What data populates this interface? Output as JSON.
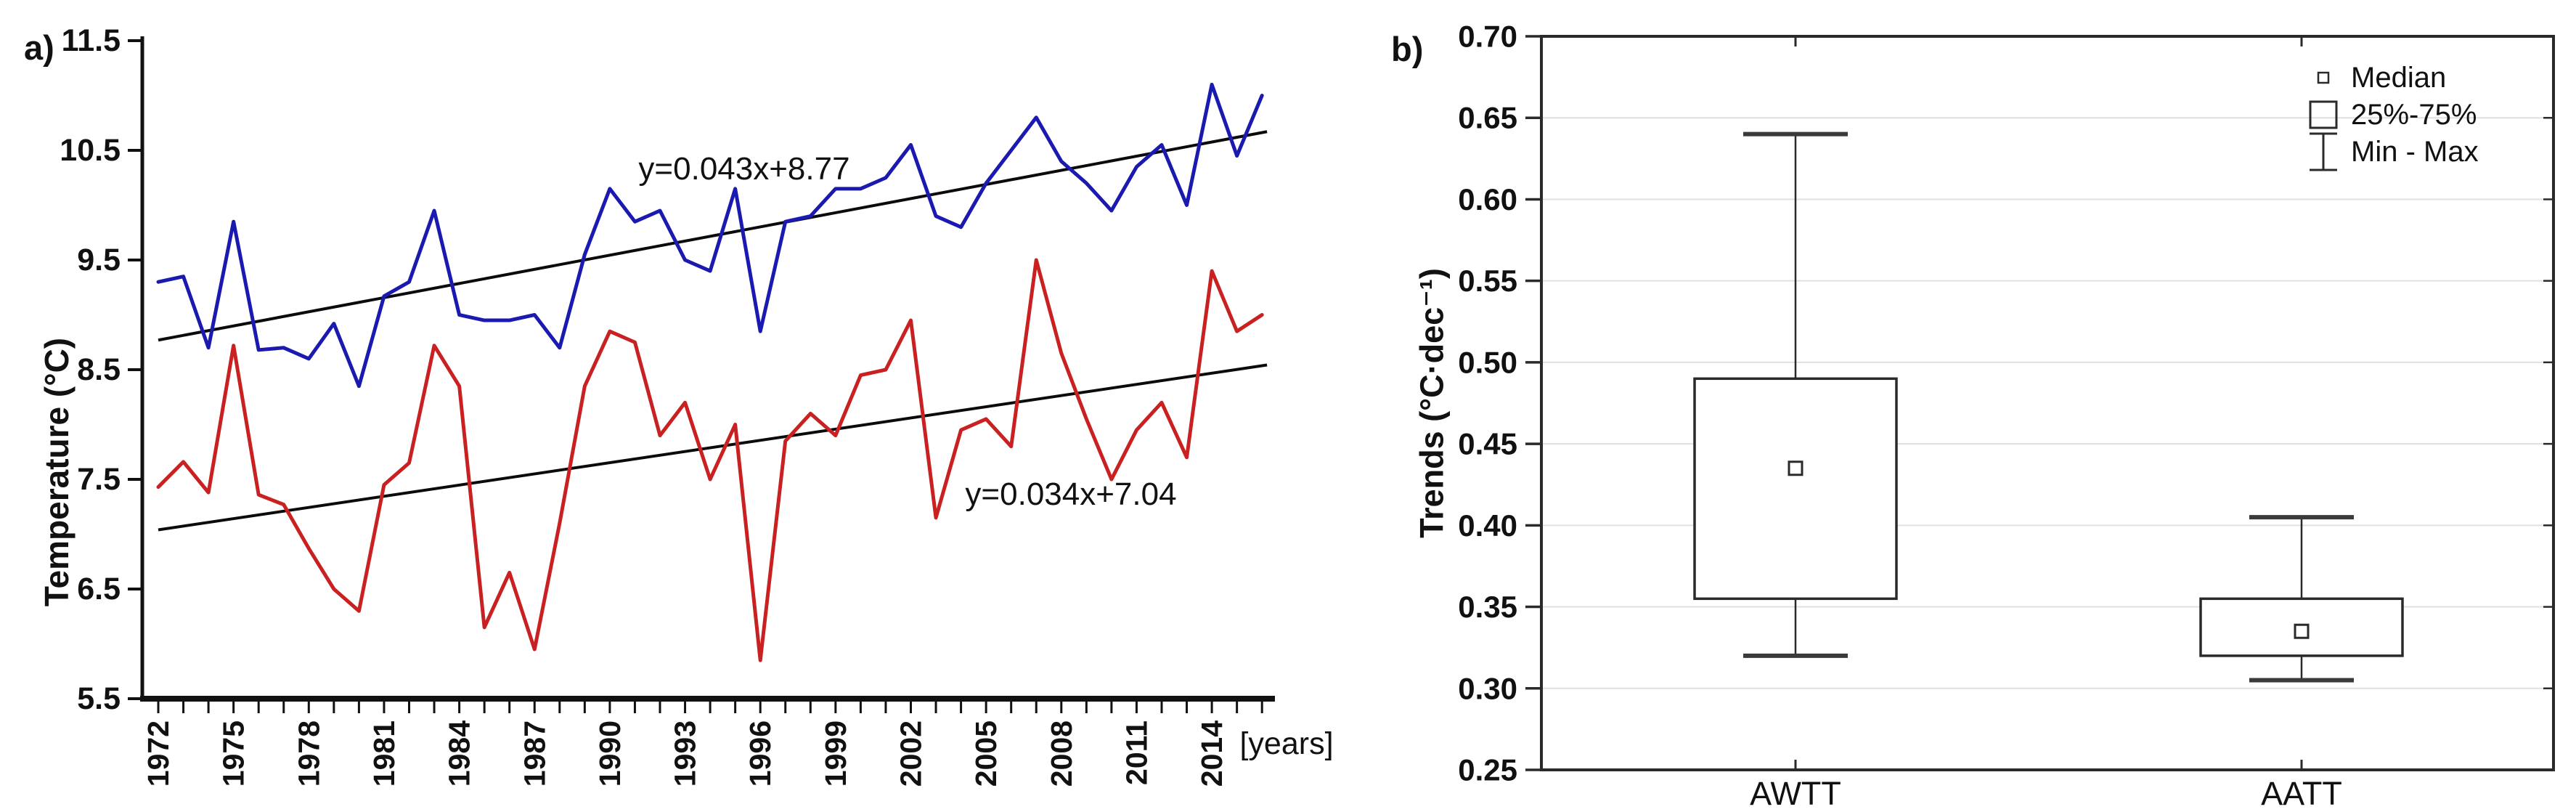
{
  "figure": {
    "background_color": "#ffffff",
    "panel_a_label": "a)",
    "panel_b_label": "b)"
  },
  "chart_data": [
    {
      "type": "line",
      "panel_label": "a)",
      "ylabel": "Temperature (°C)",
      "xlabel": "[years]",
      "ylim": [
        5.5,
        11.5
      ],
      "yticks": [
        11.5,
        10.5,
        9.5,
        8.5,
        7.5,
        6.5,
        5.5
      ],
      "x_start_year": 1972,
      "x_end_year": 2016,
      "xtick_labeled_years": [
        1972,
        1975,
        1978,
        1981,
        1984,
        1987,
        1990,
        1993,
        1996,
        1999,
        2002,
        2005,
        2008,
        2011,
        2014
      ],
      "grid": false,
      "series": [
        {
          "name": "series-blue",
          "color": "#1a1ab0",
          "values": [
            9.3,
            9.35,
            8.7,
            9.85,
            8.68,
            8.7,
            8.6,
            8.92,
            8.35,
            9.17,
            9.3,
            9.95,
            9.0,
            8.95,
            8.95,
            9.0,
            8.7,
            9.55,
            10.15,
            9.85,
            9.95,
            9.5,
            9.4,
            10.15,
            8.85,
            9.85,
            9.9,
            10.15,
            10.15,
            10.25,
            10.55,
            9.9,
            9.8,
            10.2,
            10.5,
            10.8,
            10.4,
            10.2,
            9.95,
            10.35,
            10.55,
            10.0,
            11.1,
            10.45,
            11.0
          ]
        },
        {
          "name": "series-red",
          "color": "#c92121",
          "values": [
            7.43,
            7.66,
            7.38,
            8.72,
            7.36,
            7.27,
            6.87,
            6.5,
            6.3,
            7.45,
            7.65,
            8.72,
            8.35,
            6.15,
            6.65,
            5.95,
            7.1,
            8.35,
            8.85,
            8.75,
            7.9,
            8.2,
            7.5,
            8.0,
            5.85,
            7.85,
            8.1,
            7.9,
            8.45,
            8.5,
            8.95,
            7.15,
            7.95,
            8.05,
            7.8,
            9.5,
            8.65,
            8.05,
            7.5,
            7.95,
            8.2,
            7.7,
            9.4,
            8.85,
            9.0
          ]
        }
      ],
      "trend_lines": [
        {
          "name": "trend-blue-series",
          "label": "y=0.043x+8.77",
          "slope": 0.043,
          "intercept": 8.77,
          "color": "#0b0b0b"
        },
        {
          "name": "trend-red-series",
          "label": "y=0.034x+7.04",
          "slope": 0.034,
          "intercept": 7.04,
          "color": "#0b0b0b"
        }
      ]
    },
    {
      "type": "box",
      "panel_label": "b)",
      "ylabel": "Trends (°C·dec⁻¹)",
      "ylim": [
        0.25,
        0.7
      ],
      "ytick_step": 0.05,
      "yticks": [
        0.7,
        0.65,
        0.6,
        0.55,
        0.5,
        0.45,
        0.4,
        0.35,
        0.3,
        0.25
      ],
      "grid": true,
      "categories": [
        "AWTT",
        "AATT"
      ],
      "boxes": [
        {
          "category": "AWTT",
          "min": 0.32,
          "q1": 0.355,
          "median": 0.435,
          "q3": 0.49,
          "max": 0.64
        },
        {
          "category": "AATT",
          "min": 0.305,
          "q1": 0.32,
          "median": 0.335,
          "q3": 0.355,
          "max": 0.405
        }
      ],
      "legend": [
        {
          "symbol": "small-square",
          "label": "Median"
        },
        {
          "symbol": "box",
          "label": "25%-75%"
        },
        {
          "symbol": "whisker",
          "label": "Min - Max"
        }
      ],
      "legend_position": "top-right"
    }
  ]
}
